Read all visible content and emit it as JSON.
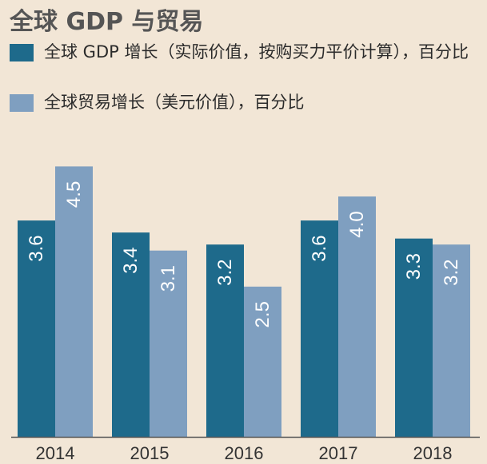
{
  "chart_data": {
    "type": "bar",
    "title": "全球 GDP 与贸易",
    "categories": [
      "2014",
      "2015",
      "2016",
      "2017",
      "2018"
    ],
    "series": [
      {
        "name": "全球 GDP 增长（实际价值，按购买力平价计算），百分比",
        "color": "#1e6a8b",
        "values": [
          3.6,
          3.4,
          3.2,
          3.6,
          3.3
        ],
        "labels": [
          "3.6",
          "3.4",
          "3.2",
          "3.6",
          "3.3"
        ]
      },
      {
        "name": "全球贸易增长（美元价值），百分比",
        "color": "#7f9fc0",
        "values": [
          4.5,
          3.1,
          2.5,
          4.0,
          3.2
        ],
        "labels": [
          "4.5",
          "3.1",
          "2.5",
          "4.0",
          "3.2"
        ]
      }
    ],
    "ylim": [
      0,
      5.05
    ],
    "xlabel": "",
    "ylabel": "",
    "grid": false,
    "legend": "top-left",
    "background": "#f2e6d6",
    "axis_color": "#555555"
  }
}
